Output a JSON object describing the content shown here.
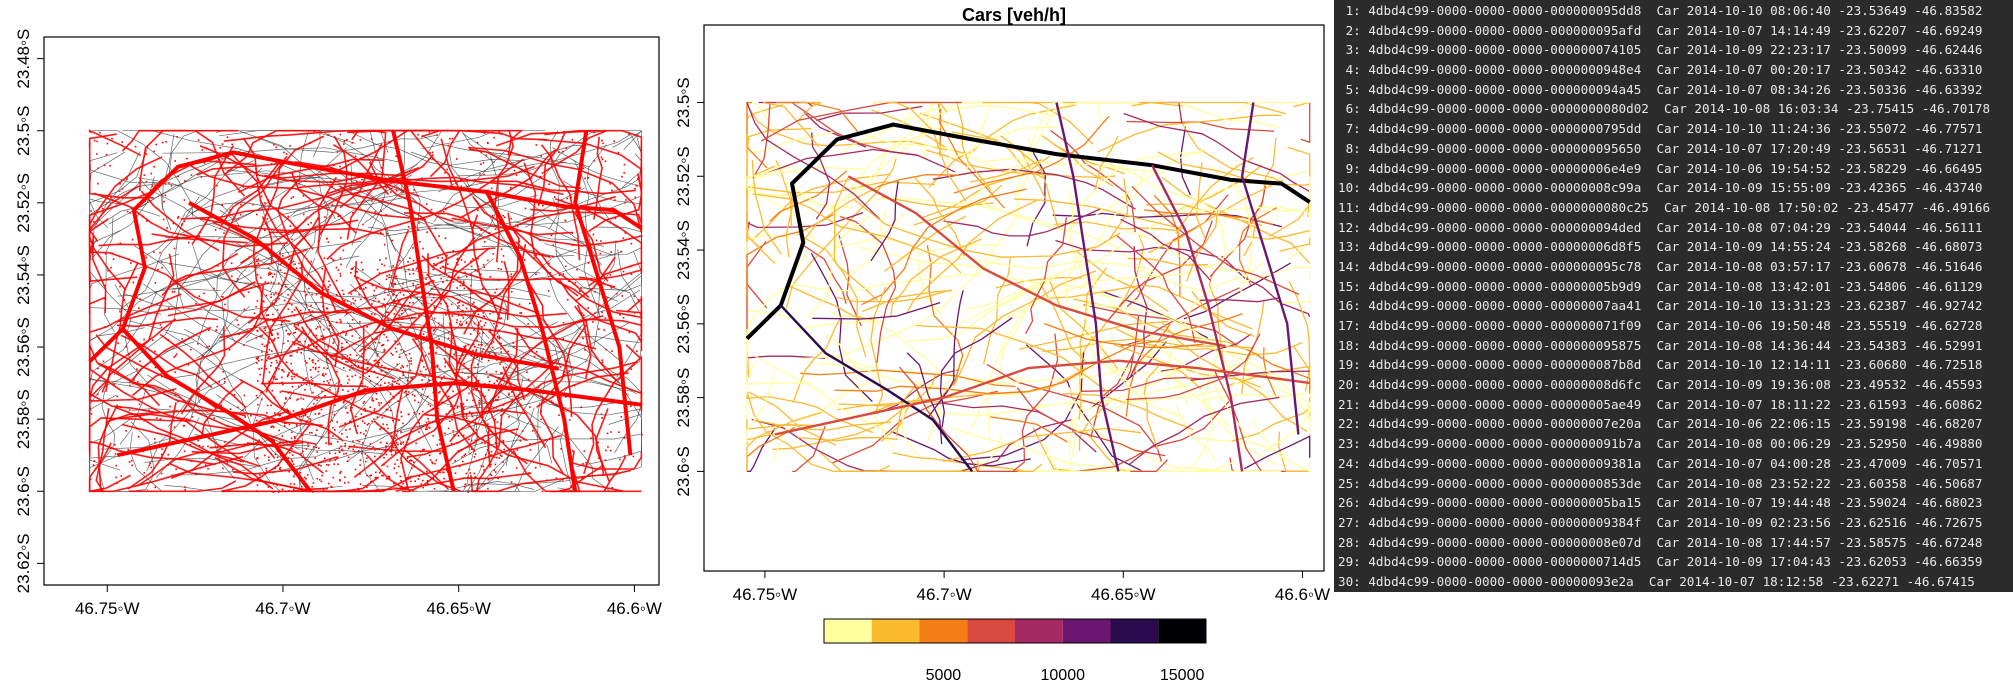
{
  "colors": {
    "points": "#ff0000",
    "roads_base": "#333333",
    "palette": [
      "#ffff9f",
      "#fcba2f",
      "#f57d15",
      "#d84a3f",
      "#a52a63",
      "#6b1670",
      "#2a0c4e",
      "#000004"
    ],
    "console_bg": "#2b2b2b",
    "console_fg": "#e8e8e8"
  },
  "chart_data": [
    {
      "type": "scatter",
      "title": "",
      "x_axis": {
        "ticks": [
          -46.75,
          -46.7,
          -46.65,
          -46.6
        ],
        "tick_labels": [
          "46.75◦W",
          "46.7◦W",
          "46.65◦W",
          "46.6◦W"
        ],
        "range": [
          -46.768,
          -46.593
        ]
      },
      "y_axis": {
        "ticks": [
          -23.48,
          -23.5,
          -23.52,
          -23.54,
          -23.56,
          -23.58,
          -23.6,
          -23.62
        ],
        "tick_labels": [
          "23.48◦S",
          "23.5◦S",
          "23.52◦S",
          "23.54◦S",
          "23.56◦S",
          "23.58◦S",
          "23.6◦S",
          "23.62◦S"
        ],
        "range": [
          -23.626,
          -23.474
        ]
      },
      "data_extent": {
        "lon": [
          -46.755,
          -46.598
        ],
        "lat": [
          -23.6,
          -23.5
        ]
      },
      "layers": [
        "road network (grey lines)",
        "vehicle points (red)"
      ]
    },
    {
      "type": "heatmap",
      "title": "Cars [veh/h]",
      "x_axis": {
        "ticks": [
          -46.75,
          -46.7,
          -46.65,
          -46.6
        ],
        "tick_labels": [
          "46.75◦W",
          "46.7◦W",
          "46.65◦W",
          "46.6◦W"
        ],
        "range": [
          -46.767,
          -46.594
        ]
      },
      "y_axis": {
        "ticks": [
          -23.5,
          -23.52,
          -23.54,
          -23.56,
          -23.58,
          -23.6
        ],
        "tick_labels": [
          "23.5◦S",
          "23.52◦S",
          "23.54◦S",
          "23.56◦S",
          "23.58◦S",
          "23.6◦S"
        ],
        "range": [
          -23.627,
          -23.479
        ]
      },
      "legend": {
        "position": "bottom",
        "breaks": [
          5000,
          10000,
          15000
        ],
        "break_labels": [
          "5000",
          "10000",
          "15000"
        ],
        "range": [
          0,
          16000
        ],
        "n_classes": 8
      }
    }
  ],
  "console": {
    "lines": [
      " 1: 4dbd4c99-0000-0000-0000-000000095dd8  Car 2014-10-10 08:06:40 -23.53649 -46.83582",
      " 2: 4dbd4c99-0000-0000-0000-000000095afd  Car 2014-10-07 14:14:49 -23.62207 -46.69249",
      " 3: 4dbd4c99-0000-0000-0000-000000074105  Car 2014-10-09 22:23:17 -23.50099 -46.62446",
      " 4: 4dbd4c99-0000-0000-0000-0000000948e4  Car 2014-10-07 00:20:17 -23.50342 -46.63310",
      " 5: 4dbd4c99-0000-0000-0000-000000094a45  Car 2014-10-07 08:34:26 -23.50336 -46.63392",
      " 6: 4dbd4c99-0000-0000-0000-0000000080d02  Car 2014-10-08 16:03:34 -23.75415 -46.70178",
      " 7: 4dbd4c99-0000-0000-0000-0000000795dd  Car 2014-10-10 11:24:36 -23.55072 -46.77571",
      " 8: 4dbd4c99-0000-0000-0000-000000095650  Car 2014-10-07 17:20:49 -23.56531 -46.71271",
      " 9: 4dbd4c99-0000-0000-0000-00000006e4e9  Car 2014-10-06 19:54:52 -23.58229 -46.66495",
      "10: 4dbd4c99-0000-0000-0000-00000008c99a  Car 2014-10-09 15:55:09 -23.42365 -46.43740",
      "11: 4dbd4c99-0000-0000-0000-0000000080c25  Car 2014-10-08 17:50:02 -23.45477 -46.49166",
      "12: 4dbd4c99-0000-0000-0000-000000094ded  Car 2014-10-08 07:04:29 -23.54044 -46.56111",
      "13: 4dbd4c99-0000-0000-0000-00000006d8f5  Car 2014-10-09 14:55:24 -23.58268 -46.68073",
      "14: 4dbd4c99-0000-0000-0000-000000095c78  Car 2014-10-08 03:57:17 -23.60678 -46.51646",
      "15: 4dbd4c99-0000-0000-0000-00000005b9d9  Car 2014-10-08 13:42:01 -23.54806 -46.61129",
      "16: 4dbd4c99-0000-0000-0000-00000007aa41  Car 2014-10-10 13:31:23 -23.62387 -46.92742",
      "17: 4dbd4c99-0000-0000-0000-000000071f09  Car 2014-10-06 19:50:48 -23.55519 -46.62728",
      "18: 4dbd4c99-0000-0000-0000-000000095875  Car 2014-10-08 14:36:44 -23.54383 -46.52991",
      "19: 4dbd4c99-0000-0000-0000-000000087b8d  Car 2014-10-10 12:14:11 -23.60680 -46.72518",
      "20: 4dbd4c99-0000-0000-0000-00000008d6fc  Car 2014-10-09 19:36:08 -23.49532 -46.45593",
      "21: 4dbd4c99-0000-0000-0000-00000005ae49  Car 2014-10-07 18:11:22 -23.61593 -46.60862",
      "22: 4dbd4c99-0000-0000-0000-00000007e20a  Car 2014-10-06 22:06:15 -23.59198 -46.68207",
      "23: 4dbd4c99-0000-0000-0000-000000091b7a  Car 2014-10-08 00:06:29 -23.52950 -46.49880",
      "24: 4dbd4c99-0000-0000-0000-00000009381a  Car 2014-10-07 04:00:28 -23.47009 -46.70571",
      "25: 4dbd4c99-0000-0000-0000-0000000853de  Car 2014-10-08 23:52:22 -23.60358 -46.50687",
      "26: 4dbd4c99-0000-0000-0000-00000005ba15  Car 2014-10-07 19:44:48 -23.59024 -46.68023",
      "27: 4dbd4c99-0000-0000-0000-00000009384f  Car 2014-10-09 02:23:56 -23.62516 -46.72675",
      "28: 4dbd4c99-0000-0000-0000-00000008e07d  Car 2014-10-08 17:44:57 -23.58575 -46.67248",
      "29: 4dbd4c99-0000-0000-0000-0000000714d5  Car 2014-10-09 17:04:43 -23.62053 -46.66359",
      "30: 4dbd4c99-0000-0000-0000-00000093e2a  Car 2014-10-07 18:12:58 -23.62271 -46.67415"
    ]
  }
}
